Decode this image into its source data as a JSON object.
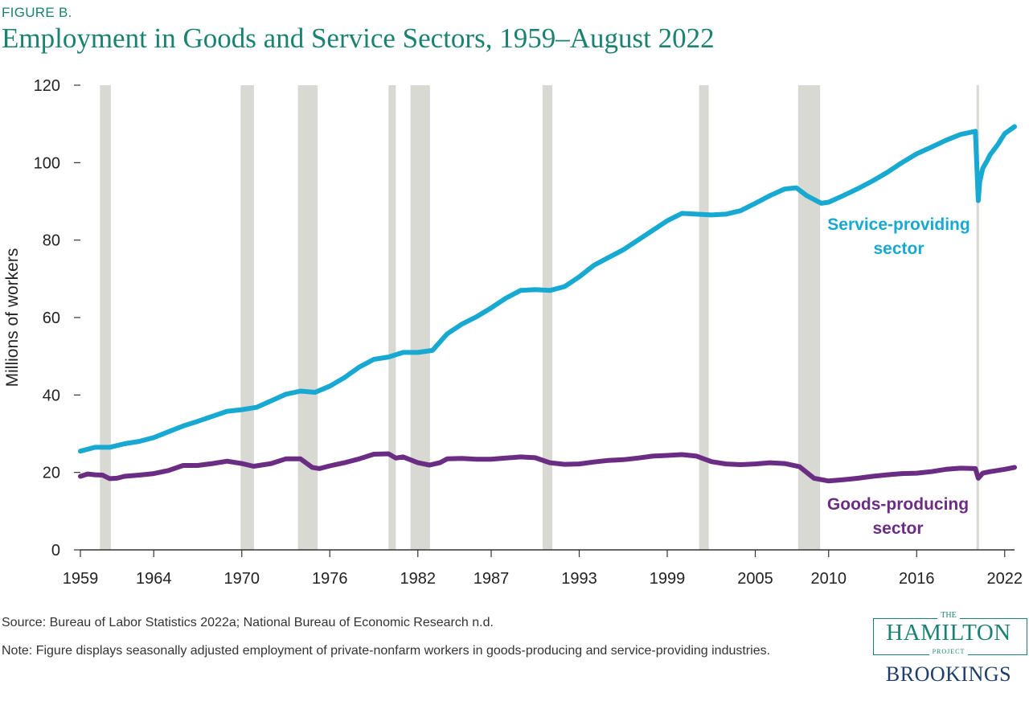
{
  "figure_label": "FIGURE B.",
  "title": "Employment in Goods and Service Sectors, 1959–August 2022",
  "source": "Source: Bureau of Labor Statistics 2022a; National Bureau of Economic Research n.d.",
  "note": "Note: Figure displays seasonally adjusted employment of private-nonfarm workers in goods-producing and service-providing industries.",
  "logo": {
    "the": "THE",
    "hamilton": "HAMILTON",
    "project": "PROJECT",
    "brookings": "BROOKINGS"
  },
  "colors": {
    "service": "#17a9d1",
    "goods": "#6b2d84",
    "recession": "#d9d9d4",
    "title": "#1a8270"
  },
  "chart_data": {
    "type": "line",
    "title": "Employment in Goods and Service Sectors, 1959–August 2022",
    "ylabel": "Millions of workers",
    "xlabel": "",
    "xlim": [
      1959,
      2022.67
    ],
    "ylim": [
      0,
      120
    ],
    "yticks": [
      0,
      20,
      40,
      60,
      80,
      100,
      120
    ],
    "xticks": [
      1959,
      1964,
      1970,
      1976,
      1982,
      1987,
      1993,
      1999,
      2005,
      2010,
      2016,
      2022
    ],
    "grid": false,
    "recessions": [
      [
        1960.33,
        1961.08
      ],
      [
        1969.92,
        1970.83
      ],
      [
        1973.83,
        1975.17
      ],
      [
        1980.0,
        1980.5
      ],
      [
        1981.5,
        1982.83
      ],
      [
        1990.5,
        1991.17
      ],
      [
        2001.17,
        2001.83
      ],
      [
        2007.92,
        2009.42
      ],
      [
        2020.08,
        2020.25
      ]
    ],
    "series": [
      {
        "name": "Service-providing sector",
        "label_lines": [
          "Service-providing",
          "sector"
        ],
        "x": [
          1959,
          1960,
          1961,
          1962,
          1963,
          1964,
          1965,
          1966,
          1967,
          1968,
          1969,
          1970,
          1971,
          1972,
          1973,
          1974,
          1975,
          1976,
          1977,
          1978,
          1979,
          1980,
          1981,
          1982,
          1983,
          1984,
          1985,
          1986,
          1987,
          1988,
          1989,
          1990,
          1991,
          1992,
          1993,
          1994,
          1995,
          1996,
          1997,
          1998,
          1999,
          2000,
          2001,
          2002,
          2003,
          2004,
          2005,
          2006,
          2007,
          2007.8,
          2008.5,
          2009.5,
          2010,
          2011,
          2012,
          2013,
          2014,
          2015,
          2016,
          2017,
          2018,
          2019,
          2020.0,
          2020.2,
          2020.3,
          2020.5,
          2020.8,
          2021,
          2021.5,
          2022,
          2022.67
        ],
        "y": [
          25.5,
          26.5,
          26.5,
          27.4,
          28,
          29,
          30.5,
          32,
          33.2,
          34.5,
          35.8,
          36.2,
          36.8,
          38.5,
          40.2,
          41,
          40.7,
          42.3,
          44.5,
          47.2,
          49.2,
          49.8,
          51,
          51,
          51.5,
          55.8,
          58.3,
          60.2,
          62.5,
          65,
          67,
          67.2,
          67,
          68,
          70.5,
          73.5,
          75.5,
          77.5,
          80,
          82.5,
          85,
          86.9,
          86.7,
          86.5,
          86.7,
          87.6,
          89.5,
          91.5,
          93.2,
          93.5,
          91.5,
          89.5,
          89.8,
          91.5,
          93.3,
          95.3,
          97.5,
          100,
          102.3,
          104,
          105.8,
          107.3,
          108.1,
          90.2,
          95,
          98.5,
          100.5,
          102,
          104.5,
          107.5,
          109.3
        ]
      },
      {
        "name": "Goods-producing sector",
        "label_lines": [
          "Goods-producing",
          "sector"
        ],
        "x": [
          1959,
          1959.5,
          1960,
          1960.5,
          1961,
          1961.5,
          1962,
          1963,
          1964,
          1965,
          1966,
          1967,
          1968,
          1969,
          1970,
          1970.8,
          1971,
          1972,
          1973,
          1974,
          1974.8,
          1975.3,
          1976,
          1977,
          1978,
          1979,
          1980,
          1980.5,
          1981,
          1982,
          1982.8,
          1983.5,
          1984,
          1985,
          1986,
          1987,
          1988,
          1989,
          1990,
          1991,
          1992,
          1993,
          1994,
          1995,
          1996,
          1997,
          1998,
          1999,
          2000,
          2001,
          2002,
          2003,
          2004,
          2005,
          2006,
          2007,
          2008,
          2009,
          2010,
          2011,
          2012,
          2013,
          2014,
          2015,
          2016,
          2017,
          2018,
          2019,
          2020.0,
          2020.2,
          2020.5,
          2021,
          2022,
          2022.67
        ],
        "y": [
          19,
          19.6,
          19.4,
          19.3,
          18.4,
          18.5,
          19,
          19.3,
          19.7,
          20.5,
          21.8,
          21.8,
          22.3,
          22.9,
          22.3,
          21.6,
          21.7,
          22.3,
          23.5,
          23.5,
          21.3,
          21,
          21.7,
          22.5,
          23.5,
          24.7,
          24.8,
          23.7,
          24,
          22.5,
          21.9,
          22.5,
          23.5,
          23.6,
          23.4,
          23.4,
          23.7,
          24,
          23.8,
          22.5,
          22.1,
          22.2,
          22.7,
          23.1,
          23.3,
          23.7,
          24.2,
          24.4,
          24.6,
          24.2,
          22.8,
          22.2,
          22.0,
          22.2,
          22.5,
          22.3,
          21.5,
          18.5,
          17.8,
          18.1,
          18.5,
          19,
          19.4,
          19.7,
          19.8,
          20.2,
          20.8,
          21.1,
          21,
          18.5,
          19.8,
          20.2,
          20.8,
          21.3
        ]
      }
    ]
  }
}
